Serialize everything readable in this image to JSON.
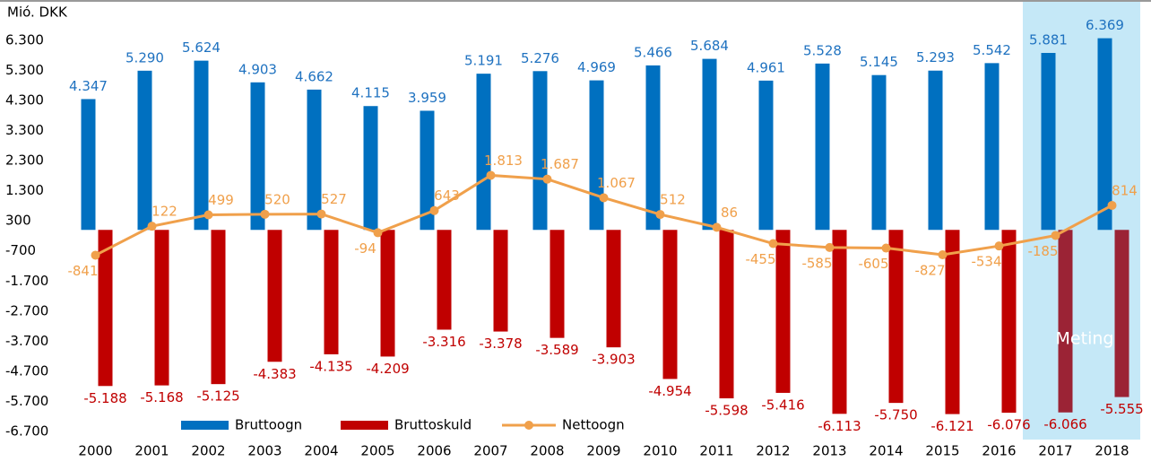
{
  "chart_data": {
    "type": "bar-line",
    "y_label": "Mió. DKK",
    "categories": [
      "2000",
      "2001",
      "2002",
      "2003",
      "2004",
      "2005",
      "2006",
      "2007",
      "2008",
      "2009",
      "2010",
      "2011",
      "2012",
      "2013",
      "2014",
      "2015",
      "2016",
      "2017",
      "2018"
    ],
    "series": [
      {
        "name": "Bruttoogn",
        "kind": "bar",
        "color": "#0070c0",
        "label_color": "#1f72c0",
        "values": [
          4347,
          5290,
          5624,
          4903,
          4662,
          4115,
          3959,
          5191,
          5276,
          4969,
          5466,
          5684,
          4961,
          5528,
          5145,
          5293,
          5542,
          5881,
          6369
        ],
        "value_labels": [
          "4.347",
          "5.290",
          "5.624",
          "4.903",
          "4.662",
          "4.115",
          "3.959",
          "5.191",
          "5.276",
          "4.969",
          "5.466",
          "5.684",
          "4.961",
          "5.528",
          "5.145",
          "5.293",
          "5.542",
          "5.881",
          "6.369"
        ]
      },
      {
        "name": "Bruttoskuld",
        "kind": "bar",
        "color": "#c00000",
        "highlight_color": "#9b2335",
        "label_color": "#c00000",
        "values": [
          -5188,
          -5168,
          -5125,
          -4383,
          -4135,
          -4209,
          -3316,
          -3378,
          -3589,
          -3903,
          -4954,
          -5598,
          -5416,
          -6113,
          -5750,
          -6121,
          -6076,
          -6066,
          -5555
        ],
        "value_labels": [
          "-5.188",
          "-5.168",
          "-5.125",
          "-4.383",
          "-4.135",
          "-4.209",
          "-3.316",
          "-3.378",
          "-3.589",
          "-3.903",
          "-4.954",
          "-5.598",
          "-5.416",
          "-6.113",
          "-5.750",
          "-6.121",
          "-6.076",
          "-6.066",
          "-5.555"
        ]
      },
      {
        "name": "Nettoogn",
        "kind": "line",
        "color": "#f0a04b",
        "label_color": "#f0a04b",
        "values": [
          -841,
          122,
          499,
          520,
          527,
          -94,
          643,
          1813,
          1687,
          1067,
          512,
          86,
          -455,
          -585,
          -605,
          -827,
          -534,
          -185,
          814
        ],
        "value_labels": [
          "-841",
          "122",
          "499",
          "520",
          "527",
          "-94",
          "643",
          "1.813",
          "1.687",
          "1.067",
          "512",
          "86",
          "-455",
          "-585",
          "-605",
          "-827",
          "-534",
          "-185",
          "814"
        ]
      }
    ],
    "ylim": [
      -6700,
      7300
    ],
    "yticks": [
      {
        "value": 6300,
        "label": "6.300"
      },
      {
        "value": 5300,
        "label": "5.300"
      },
      {
        "value": 4300,
        "label": "4.300"
      },
      {
        "value": 3300,
        "label": "3.300"
      },
      {
        "value": 2300,
        "label": "2.300"
      },
      {
        "value": 1300,
        "label": "1.300"
      },
      300,
      -700,
      {
        "value": -1700,
        "label": "-1.700"
      },
      {
        "value": -2700,
        "label": "-2.700"
      },
      {
        "value": -3700,
        "label": "-3.700"
      },
      {
        "value": -4700,
        "label": "-4.700"
      },
      {
        "value": -5700,
        "label": "-5.700"
      },
      {
        "value": -6700,
        "label": "-6.700"
      }
    ],
    "highlight": {
      "text": "Meting",
      "categories": [
        "2017",
        "2018"
      ],
      "color": "#c5e8f7"
    },
    "legend": "bottom"
  }
}
